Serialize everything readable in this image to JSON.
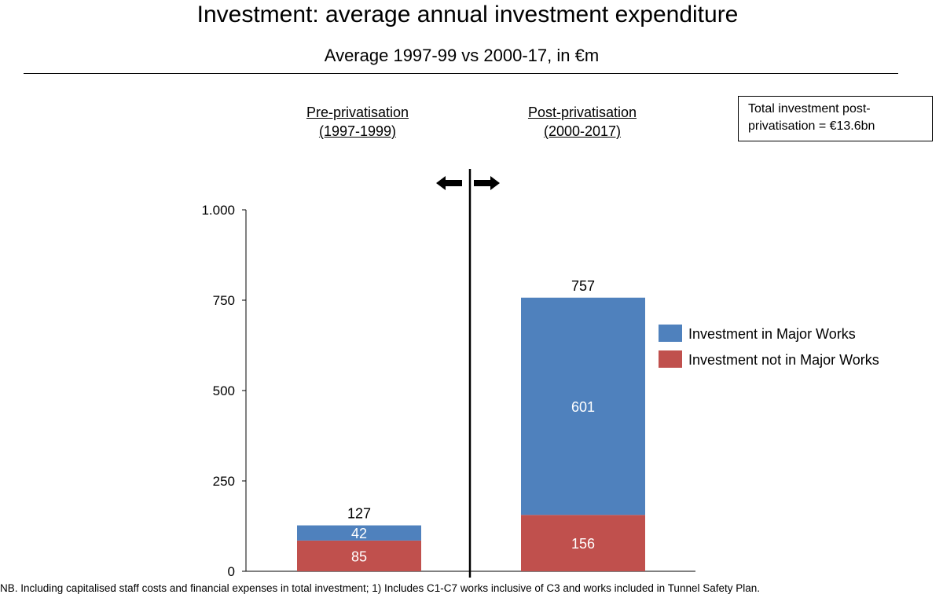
{
  "chart_data": {
    "type": "bar",
    "stacked": true,
    "title": "Investment: average annual investment expenditure",
    "subtitle": "Average 1997-99 vs 2000-17, in €m",
    "categories": [
      "Pre-privatisation (1997-1999)",
      "Post-privatisation (2000-2017)"
    ],
    "series": [
      {
        "name": "Investment not in Major Works",
        "values": [
          85,
          156
        ],
        "color": "#c0504d"
      },
      {
        "name": "Investment in Major Works",
        "values": [
          42,
          601
        ],
        "color": "#4f81bd"
      }
    ],
    "totals": [
      127,
      757
    ],
    "ylim": [
      0,
      1000
    ],
    "yticks": [
      0,
      250,
      500,
      750,
      1000
    ],
    "ytick_labels": [
      "0",
      "250",
      "500",
      "750",
      "1.000"
    ],
    "grid": false,
    "legend": "right"
  },
  "periods": {
    "pre": {
      "line1": "Pre-privatisation",
      "line2": "(1997-1999)"
    },
    "post": {
      "line1": "Post-privatisation",
      "line2": "(2000-2017)"
    }
  },
  "note": "Total investment post-\nprivatisation = €13.6bn",
  "footnote": "NB. Including capitalised staff costs and financial expenses in total investment; 1) Includes C1-C7 works inclusive of C3 and works included in Tunnel Safety Plan."
}
